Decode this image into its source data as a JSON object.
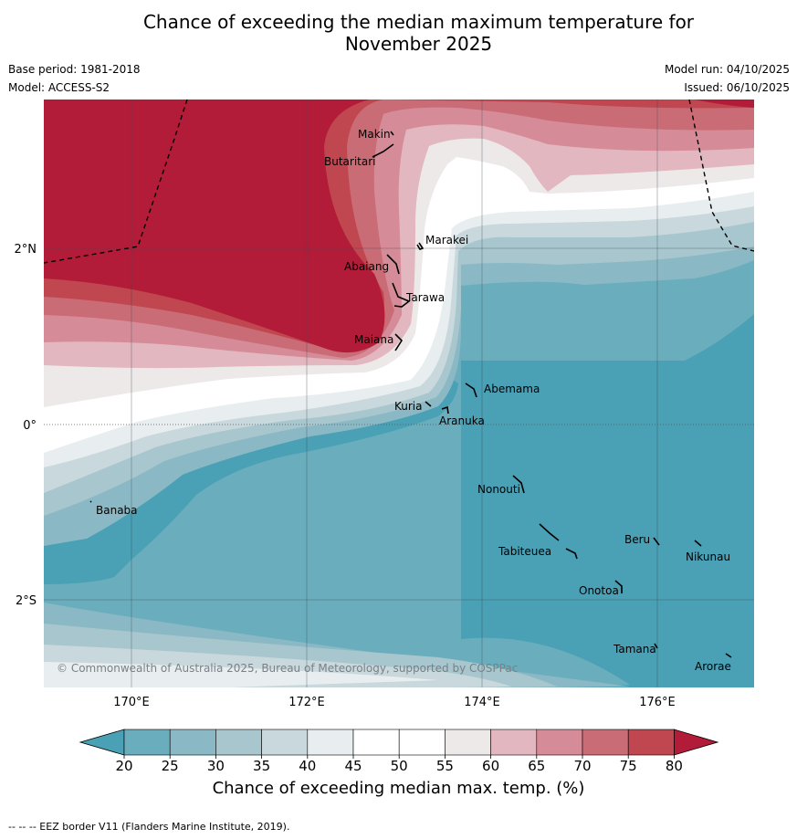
{
  "title_line1": "Chance of exceeding the median maximum temperature for",
  "title_line2": "November 2025",
  "meta": {
    "base_period": "Base period: 1981-2018",
    "model": "Model: ACCESS-S2",
    "model_run": "Model run: 04/10/2025",
    "issued": "Issued: 06/10/2025"
  },
  "axes": {
    "lat_labels": [
      "2°N",
      "0°",
      "2°S"
    ],
    "lon_labels": [
      "170°E",
      "172°E",
      "174°E",
      "176°E"
    ]
  },
  "places": [
    {
      "id": "makin",
      "name": "Makin"
    },
    {
      "id": "butaritari",
      "name": "Butaritari"
    },
    {
      "id": "marakei",
      "name": "Marakei"
    },
    {
      "id": "abaiang",
      "name": "Abaiang"
    },
    {
      "id": "tarawa",
      "name": "Tarawa"
    },
    {
      "id": "maiana",
      "name": "Maiana"
    },
    {
      "id": "abemama",
      "name": "Abemama"
    },
    {
      "id": "kuria",
      "name": "Kuria"
    },
    {
      "id": "aranuka",
      "name": "Aranuka"
    },
    {
      "id": "nonouti",
      "name": "Nonouti"
    },
    {
      "id": "banaba",
      "name": "Banaba"
    },
    {
      "id": "beru",
      "name": "Beru"
    },
    {
      "id": "nikunau",
      "name": "Nikunau"
    },
    {
      "id": "tabiteuea",
      "name": "Tabiteuea"
    },
    {
      "id": "onotoa",
      "name": "Onotoa"
    },
    {
      "id": "tamana",
      "name": "Tamana"
    },
    {
      "id": "arorae",
      "name": "Arorae"
    }
  ],
  "copyright": "© Commonwealth of Australia 2025, Bureau of Meteorology, supported by COSPPac",
  "colorbar": {
    "ticks": [
      "20",
      "25",
      "30",
      "35",
      "40",
      "45",
      "50",
      "55",
      "60",
      "65",
      "70",
      "75",
      "80"
    ],
    "colors": [
      "#4aa0b5",
      "#6aadbd",
      "#8ab9c5",
      "#a8c6cd",
      "#c8d8dc",
      "#e8eef0",
      "#ffffff",
      "#ffffff",
      "#ede9e9",
      "#e2b7bf",
      "#d68c98",
      "#c96c76",
      "#c04650",
      "#b31c38"
    ],
    "title": "Chance of exceeding median max. temp. (%)"
  },
  "footnote": "--  --  -- EEZ border V11 (Flanders Marine Institute, 2019)."
}
